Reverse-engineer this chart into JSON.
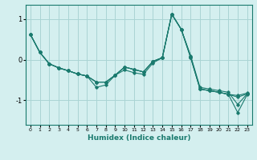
{
  "xlabel": "Humidex (Indice chaleur)",
  "ylabel": "",
  "bg_color": "#d4efef",
  "grid_color": "#aad4d4",
  "line_color": "#1a7a6e",
  "marker_color": "#1a7a6e",
  "xlim": [
    -0.5,
    23.5
  ],
  "ylim": [
    -1.6,
    1.35
  ],
  "yticks": [
    -1,
    0,
    1
  ],
  "xticks": [
    0,
    1,
    2,
    3,
    4,
    5,
    6,
    7,
    8,
    9,
    10,
    11,
    12,
    13,
    14,
    15,
    16,
    17,
    18,
    19,
    20,
    21,
    22,
    23
  ],
  "series": [
    [
      0.62,
      0.18,
      -0.1,
      -0.2,
      -0.27,
      -0.35,
      -0.4,
      -0.55,
      -0.55,
      -0.38,
      -0.18,
      -0.24,
      -0.3,
      -0.04,
      0.05,
      1.12,
      0.75,
      0.08,
      -0.72,
      -0.76,
      -0.8,
      -0.85,
      -0.88,
      -0.82
    ],
    [
      0.62,
      0.18,
      -0.1,
      -0.2,
      -0.27,
      -0.35,
      -0.4,
      -0.68,
      -0.62,
      -0.38,
      -0.25,
      -0.32,
      -0.36,
      -0.08,
      0.05,
      1.12,
      0.75,
      0.1,
      -0.68,
      -0.72,
      -0.76,
      -0.8,
      -1.1,
      -0.84
    ],
    [
      0.62,
      0.18,
      -0.1,
      -0.2,
      -0.27,
      -0.35,
      -0.4,
      -0.55,
      -0.55,
      -0.38,
      -0.18,
      -0.24,
      -0.3,
      -0.04,
      0.05,
      1.12,
      0.75,
      0.05,
      -0.72,
      -0.76,
      -0.8,
      -0.85,
      -1.3,
      -0.86
    ],
    [
      0.62,
      0.18,
      -0.1,
      -0.2,
      -0.27,
      -0.35,
      -0.4,
      -0.55,
      -0.55,
      -0.38,
      -0.18,
      -0.24,
      -0.3,
      -0.04,
      0.05,
      1.12,
      0.75,
      0.06,
      -0.72,
      -0.76,
      -0.8,
      -0.85,
      -0.92,
      -0.84
    ]
  ]
}
